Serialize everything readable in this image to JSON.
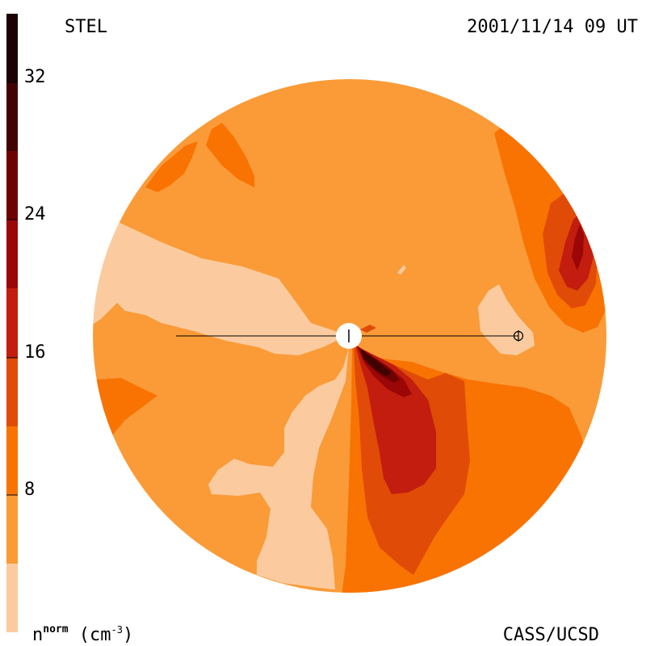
{
  "header": {
    "source": "STEL",
    "timestamp": "2001/11/14 09 UT"
  },
  "footer": {
    "credit": "CASS/UCSD"
  },
  "colorbar": {
    "label_symbol": "n",
    "label_superscript": "norm",
    "label_unit_open": " (cm",
    "label_unit_exponent": "-3",
    "label_unit_close": ")",
    "ticks": [
      "8",
      "16",
      "24",
      "32"
    ],
    "levels": [
      {
        "color": "#fbcb9f"
      },
      {
        "color": "#fa9b38"
      },
      {
        "color": "#f97302"
      },
      {
        "color": "#e04b07"
      },
      {
        "color": "#c21d0e"
      },
      {
        "color": "#9b0606"
      },
      {
        "color": "#6e0202"
      },
      {
        "color": "#420202"
      },
      {
        "color": "#1c0202"
      }
    ]
  },
  "plot": {
    "background_color": "#fa9b38",
    "sun_marker": "Sun",
    "earth_marker": "Earth"
  }
}
